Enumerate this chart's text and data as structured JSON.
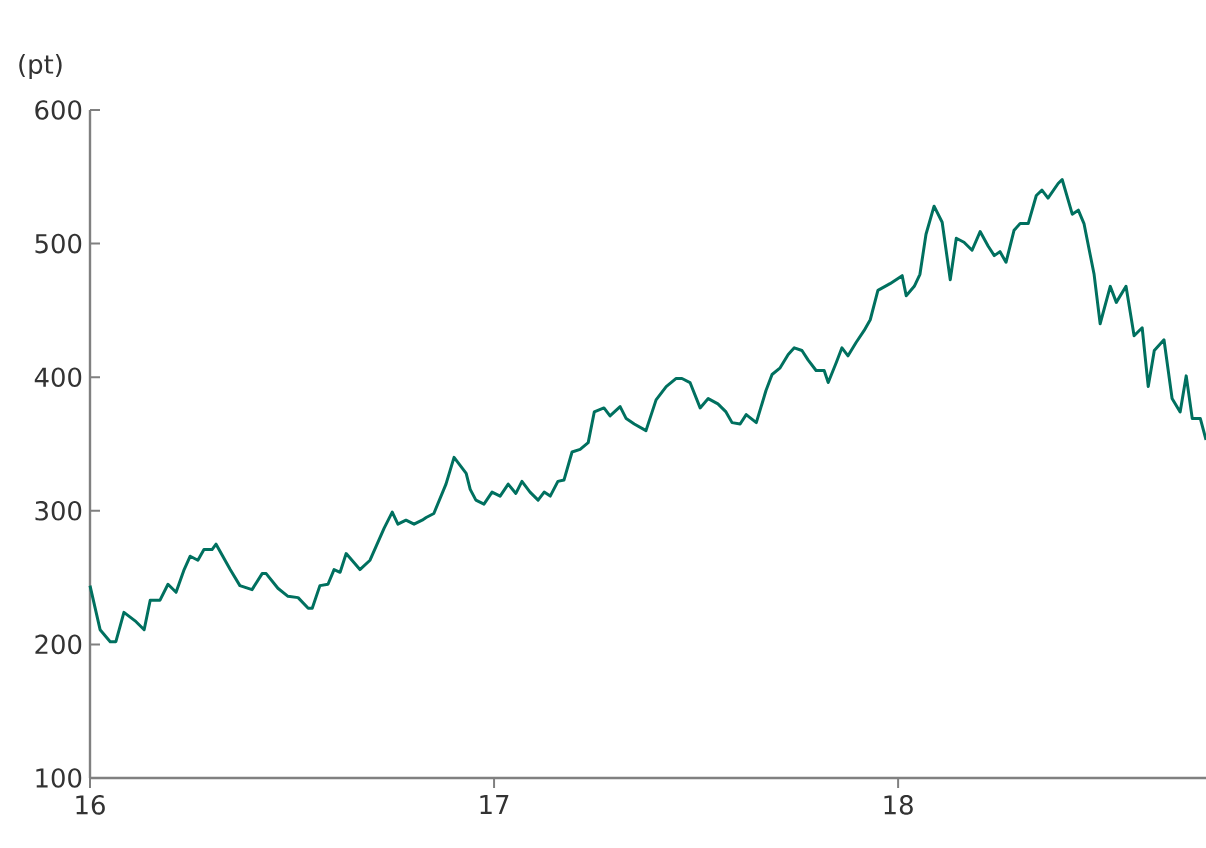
{
  "chart_data": {
    "type": "line",
    "ylabel": "(pt)",
    "x": [
      16.0,
      16.025,
      16.05,
      16.064,
      16.084,
      16.114,
      16.134,
      16.149,
      16.173,
      16.193,
      16.213,
      16.233,
      16.248,
      16.267,
      16.282,
      16.302,
      16.312,
      16.347,
      16.371,
      16.401,
      16.426,
      16.436,
      16.465,
      16.49,
      16.515,
      16.54,
      16.55,
      16.569,
      16.589,
      16.604,
      16.619,
      16.634,
      16.668,
      16.693,
      16.728,
      16.748,
      16.762,
      16.782,
      16.802,
      16.822,
      16.832,
      16.851,
      16.881,
      16.901,
      16.931,
      16.941,
      16.955,
      16.975,
      16.995,
      17.015,
      17.035,
      17.054,
      17.069,
      17.089,
      17.109,
      17.124,
      17.139,
      17.158,
      17.173,
      17.193,
      17.213,
      17.233,
      17.248,
      17.272,
      17.287,
      17.312,
      17.327,
      17.347,
      17.376,
      17.401,
      17.426,
      17.45,
      17.465,
      17.485,
      17.51,
      17.53,
      17.554,
      17.574,
      17.589,
      17.609,
      17.624,
      17.649,
      17.673,
      17.688,
      17.708,
      17.728,
      17.743,
      17.762,
      17.777,
      17.797,
      17.817,
      17.827,
      17.847,
      17.861,
      17.876,
      17.896,
      17.916,
      17.931,
      17.95,
      17.98,
      18.01,
      18.02,
      18.04,
      18.054,
      18.069,
      18.089,
      18.109,
      18.129,
      18.144,
      18.163,
      18.183,
      18.203,
      18.223,
      18.238,
      18.252,
      18.267,
      18.287,
      18.302,
      18.322,
      18.342,
      18.356,
      18.371,
      18.396,
      18.406,
      18.431,
      18.446,
      18.46,
      18.485,
      18.5,
      18.525,
      18.54,
      18.564,
      18.584,
      18.604,
      18.619,
      18.634,
      18.658,
      18.678,
      18.698,
      18.713,
      18.728,
      18.748,
      18.762
    ],
    "series": [
      {
        "color": "#00705f",
        "values": [
          244,
          211,
          202,
          202,
          224,
          217,
          211,
          233,
          233,
          245,
          239,
          256,
          266,
          263,
          271,
          271,
          275,
          256,
          244,
          241,
          253,
          253,
          242,
          236,
          235,
          227,
          227,
          244,
          245,
          256,
          254,
          268,
          256,
          263,
          287,
          299,
          290,
          293,
          290,
          293,
          295,
          298,
          320,
          340,
          328,
          316,
          308,
          305,
          314,
          311,
          320,
          313,
          322,
          314,
          308,
          314,
          311,
          322,
          323,
          344,
          346,
          351,
          374,
          377,
          371,
          378,
          369,
          365,
          360,
          383,
          393,
          399,
          399,
          396,
          377,
          384,
          380,
          374,
          366,
          365,
          372,
          366,
          390,
          402,
          407,
          417,
          422,
          420,
          413,
          405,
          405,
          396,
          411,
          422,
          416,
          426,
          435,
          443,
          465,
          470,
          476,
          461,
          468,
          477,
          507,
          528,
          516,
          473,
          504,
          501,
          495,
          509,
          498,
          491,
          494,
          486,
          510,
          515,
          515,
          536,
          540,
          534,
          545,
          548,
          522,
          525,
          515,
          477,
          440,
          468,
          456,
          468,
          431,
          437,
          393,
          420,
          428,
          384,
          374,
          401,
          369,
          369,
          353
        ]
      }
    ],
    "xlim": [
      16,
      18.762
    ],
    "ylim": [
      100,
      600
    ],
    "xticks": [
      16,
      17,
      18
    ],
    "yticks": [
      100,
      200,
      300,
      400,
      500,
      600
    ],
    "marker": "none",
    "line_style": "solid"
  }
}
